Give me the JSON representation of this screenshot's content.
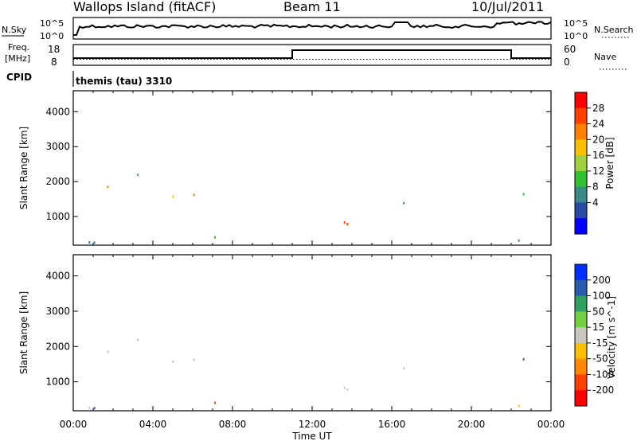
{
  "header": {
    "title": "Wallops Island (fitACF)",
    "beam": "Beam 11",
    "date": "10/Jul/2011"
  },
  "nsky_panel": {
    "left_label": "N.Sky",
    "left_ticks": [
      "10^5",
      "10^0"
    ],
    "right_ticks": [
      "10^5",
      "10^0"
    ],
    "right_label": "N.Search"
  },
  "freq_panel": {
    "left_label_1": "Freq.",
    "left_label_2": "[MHz]",
    "left_ticks": [
      "18",
      "8"
    ],
    "right_ticks": [
      "60",
      "0"
    ],
    "right_label": "Nave"
  },
  "cpid": {
    "label": "CPID",
    "value": "themis (tau) 3310"
  },
  "chart_data": [
    {
      "type": "heatmap",
      "name": "power",
      "xlabel": "",
      "ylabel": "Slant Range [km]",
      "x_ticks": [
        "00:00",
        "04:00",
        "08:00",
        "12:00",
        "16:00",
        "20:00",
        "00:00"
      ],
      "y_ticks": [
        "1000",
        "2000",
        "3000",
        "4000"
      ],
      "ylim": [
        180,
        4600
      ],
      "colorbar_label": "Power [dB]",
      "colorbar_ticks": [
        "4",
        "8",
        "12",
        "16",
        "20",
        "24",
        "28"
      ],
      "colorbar_colors": [
        "#0000ff",
        "#2a4aa8",
        "#3a8a8a",
        "#30c030",
        "#a0d040",
        "#f8c000",
        "#ff8000",
        "#ff4000",
        "#ff0000"
      ],
      "scatter_regions": [
        {
          "t0": 0.0,
          "t1": 6.8,
          "r0": 1300,
          "r1": 2300,
          "level": 4
        },
        {
          "t0": 1.5,
          "t1": 2.8,
          "r0": 400,
          "r1": 1000,
          "level": 4
        },
        {
          "t0": 5.6,
          "t1": 6.6,
          "r0": 1600,
          "r1": 2200,
          "level": 8
        },
        {
          "t0": 11.0,
          "t1": 15.0,
          "r0": 300,
          "r1": 2200,
          "level": 8
        },
        {
          "t0": 12.6,
          "t1": 14.6,
          "r0": 400,
          "r1": 1400,
          "level": 8
        },
        {
          "t0": 15.0,
          "t1": 17.5,
          "r0": 900,
          "r1": 1800,
          "level": 3
        },
        {
          "t0": 21.5,
          "t1": 24.0,
          "r0": 1200,
          "r1": 2000,
          "level": 4
        },
        {
          "t0": 0.0,
          "t1": 24.0,
          "r0": 180,
          "r1": 450,
          "level": 2
        }
      ]
    },
    {
      "type": "heatmap",
      "name": "velocity",
      "xlabel": "Time UT",
      "ylabel": "Slant Range [km]",
      "x_ticks": [
        "00:00",
        "04:00",
        "08:00",
        "12:00",
        "16:00",
        "20:00",
        "00:00"
      ],
      "y_ticks": [
        "1000",
        "2000",
        "3000",
        "4000"
      ],
      "ylim": [
        180,
        4600
      ],
      "colorbar_label": "Velocity [m s^-1]",
      "colorbar_ticks": [
        "200",
        "100",
        "50",
        "15",
        "-15",
        "-50",
        "-100",
        "-200"
      ],
      "colorbar_colors": [
        "#0030ff",
        "#2a5ab0",
        "#30a060",
        "#70d040",
        "#c8c8c0",
        "#f8c000",
        "#ff8800",
        "#ff4000",
        "#ff0000"
      ]
    }
  ]
}
